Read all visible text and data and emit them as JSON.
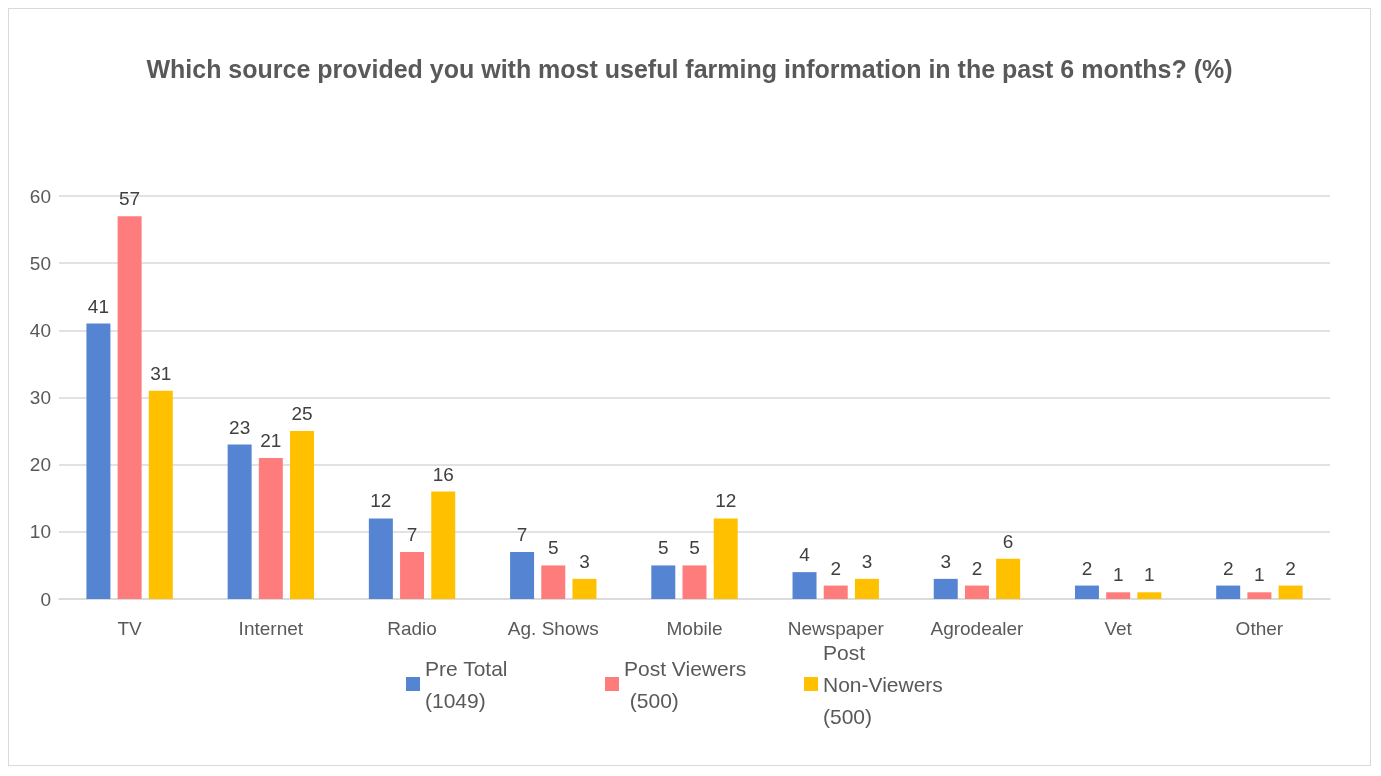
{
  "chart_data": {
    "type": "bar",
    "title": "Which source provided you with most useful farming information in the past 6 months? (%)",
    "categories": [
      "TV",
      "Internet",
      "Radio",
      "Ag. Shows",
      "Mobile",
      "Newspaper",
      "Agrodealer",
      "Vet",
      "Other"
    ],
    "series": [
      {
        "name": "Pre Total (1049)",
        "color": "#5585d2",
        "values": [
          41,
          23,
          12,
          7,
          5,
          4,
          3,
          2,
          2
        ]
      },
      {
        "name": "Post Viewers (500)",
        "color": "#ff7c7c",
        "values": [
          57,
          21,
          7,
          5,
          5,
          2,
          2,
          1,
          1
        ]
      },
      {
        "name": "Post Non-Viewers (500)",
        "color": "#ffc000",
        "values": [
          31,
          25,
          16,
          3,
          12,
          3,
          6,
          1,
          2
        ]
      }
    ],
    "ylim": [
      0,
      60
    ],
    "yticks": [
      0,
      10,
      20,
      30,
      40,
      50,
      60
    ],
    "grid": "y",
    "legend": "bottom",
    "data_labels": true
  }
}
